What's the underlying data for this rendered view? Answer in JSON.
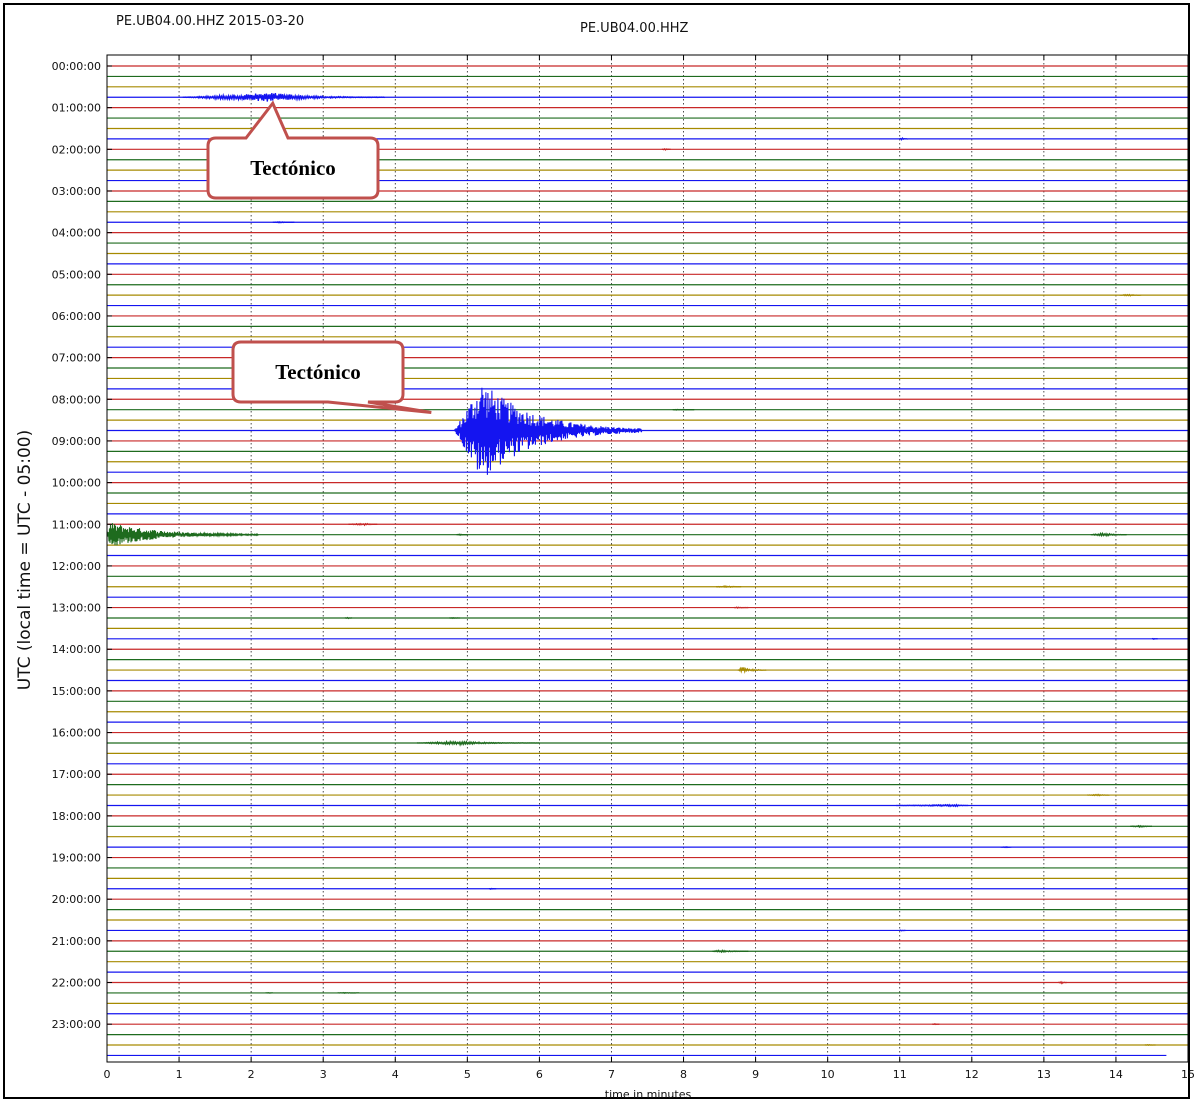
{
  "header": {
    "left_title": "PE.UB04.00.HHZ 2015-03-20",
    "center_title": "PE.UB04.00.HHZ"
  },
  "chart_data": {
    "type": "line",
    "title": "PE.UB04.00.HHZ",
    "subtitle": "PE.UB04.00.HHZ 2015-03-20",
    "xlabel": "time in minutes",
    "ylabel": "UTC (local time = UTC - 05:00)",
    "xlim": [
      0,
      15
    ],
    "x_ticks": [
      "0",
      "1",
      "2",
      "3",
      "4",
      "5",
      "6",
      "7",
      "8",
      "9",
      "10",
      "11",
      "12",
      "13",
      "14",
      "15"
    ],
    "y_ticks": [
      "00:00:00",
      "01:00:00",
      "02:00:00",
      "03:00:00",
      "04:00:00",
      "05:00:00",
      "06:00:00",
      "07:00:00",
      "08:00:00",
      "09:00:00",
      "10:00:00",
      "11:00:00",
      "12:00:00",
      "13:00:00",
      "14:00:00",
      "15:00:00",
      "16:00:00",
      "17:00:00",
      "18:00:00",
      "19:00:00",
      "20:00:00",
      "21:00:00",
      "22:00:00",
      "23:00:00"
    ],
    "trace_minutes": 15,
    "traces_per_hour": 4,
    "trace_colors": [
      "#c82828",
      "#1e6b1e",
      "#a68a00",
      "#1414f0"
    ],
    "grid": true,
    "events": [
      {
        "trace_time": "00:45",
        "start_min": 1.05,
        "duration_min": 2.8,
        "peak_min": 2.3,
        "amplitude": 0.45
      },
      {
        "trace_time": "08:45",
        "start_min": 4.82,
        "duration_min": 2.6,
        "peak_min": 5.2,
        "amplitude": 4.8
      },
      {
        "trace_time": "11:15",
        "start_min": 0.0,
        "duration_min": 2.1,
        "peak_min": 0.05,
        "amplitude": 1.2
      },
      {
        "trace_time": "16:15",
        "start_min": 4.3,
        "duration_min": 1.7,
        "peak_min": 4.9,
        "amplitude": 0.18
      },
      {
        "trace_time": "14:30",
        "start_min": 8.75,
        "duration_min": 0.4,
        "peak_min": 8.82,
        "amplitude": 0.32
      },
      {
        "trace_time": "11:15",
        "start_min": 13.65,
        "duration_min": 0.5,
        "peak_min": 13.85,
        "amplitude": 0.18
      },
      {
        "trace_time": "11:00",
        "start_min": 3.35,
        "duration_min": 0.4,
        "peak_min": 3.6,
        "amplitude": 0.1
      },
      {
        "trace_time": "17:45",
        "start_min": 10.95,
        "duration_min": 1.0,
        "peak_min": 11.8,
        "amplitude": 0.1
      },
      {
        "trace_time": "12:30",
        "start_min": 8.45,
        "duration_min": 0.35,
        "peak_min": 8.6,
        "amplitude": 0.1
      },
      {
        "trace_time": "05:30",
        "start_min": 14.05,
        "duration_min": 0.3,
        "peak_min": 14.2,
        "amplitude": 0.1
      },
      {
        "trace_time": "21:15",
        "start_min": 8.4,
        "duration_min": 0.5,
        "peak_min": 8.5,
        "amplitude": 0.12
      },
      {
        "trace_time": "17:30",
        "start_min": 13.6,
        "duration_min": 0.3,
        "peak_min": 13.75,
        "amplitude": 0.1
      },
      {
        "trace_time": "18:15",
        "start_min": 14.2,
        "duration_min": 0.3,
        "peak_min": 14.35,
        "amplitude": 0.1
      },
      {
        "trace_time": "01:45",
        "start_min": 11.0,
        "duration_min": 0.1,
        "peak_min": 11.03,
        "amplitude": 0.12
      },
      {
        "trace_time": "22:00",
        "start_min": 13.2,
        "duration_min": 0.12,
        "peak_min": 13.25,
        "amplitude": 0.12
      },
      {
        "trace_time": "03:45",
        "start_min": 2.3,
        "duration_min": 0.3,
        "peak_min": 2.4,
        "amplitude": 0.06
      },
      {
        "trace_time": "18:45",
        "start_min": 12.4,
        "duration_min": 0.15,
        "peak_min": 12.5,
        "amplitude": 0.06
      },
      {
        "trace_time": "02:00",
        "start_min": 7.7,
        "duration_min": 0.12,
        "peak_min": 7.75,
        "amplitude": 0.06
      },
      {
        "trace_time": "13:15",
        "start_min": 3.3,
        "duration_min": 0.1,
        "peak_min": 3.35,
        "amplitude": 0.06
      },
      {
        "trace_time": "13:15",
        "start_min": 4.75,
        "duration_min": 0.15,
        "peak_min": 4.8,
        "amplitude": 0.06
      },
      {
        "trace_time": "11:15",
        "start_min": 4.85,
        "duration_min": 0.15,
        "peak_min": 4.9,
        "amplitude": 0.06
      },
      {
        "trace_time": "13:00",
        "start_min": 8.7,
        "duration_min": 0.2,
        "peak_min": 8.75,
        "amplitude": 0.06
      },
      {
        "trace_time": "08:15",
        "start_min": 7.85,
        "duration_min": 0.3,
        "peak_min": 7.9,
        "amplitude": 0.04
      },
      {
        "trace_time": "23:00",
        "start_min": 11.45,
        "duration_min": 0.1,
        "peak_min": 11.5,
        "amplitude": 0.05
      },
      {
        "trace_time": "23:30",
        "start_min": 14.4,
        "duration_min": 0.15,
        "peak_min": 14.45,
        "amplitude": 0.05
      },
      {
        "trace_time": "19:45",
        "start_min": 5.3,
        "duration_min": 0.1,
        "peak_min": 5.33,
        "amplitude": 0.05
      },
      {
        "trace_time": "22:15",
        "start_min": 2.2,
        "duration_min": 0.1,
        "peak_min": 2.25,
        "amplitude": 0.04
      },
      {
        "trace_time": "22:15",
        "start_min": 3.2,
        "duration_min": 0.3,
        "peak_min": 3.3,
        "amplitude": 0.04
      },
      {
        "trace_time": "20:45",
        "start_min": 11.0,
        "duration_min": 0.08,
        "peak_min": 11.03,
        "amplitude": 0.05
      },
      {
        "trace_time": "13:45",
        "start_min": 14.5,
        "duration_min": 0.08,
        "peak_min": 14.52,
        "amplitude": 0.05
      }
    ],
    "annotations": [
      {
        "label": "Tectónico",
        "target_trace": "00:45",
        "target_min": 2.3
      },
      {
        "label": "Tectónico",
        "target_trace": "08:45",
        "target_min": 4.5
      }
    ]
  }
}
